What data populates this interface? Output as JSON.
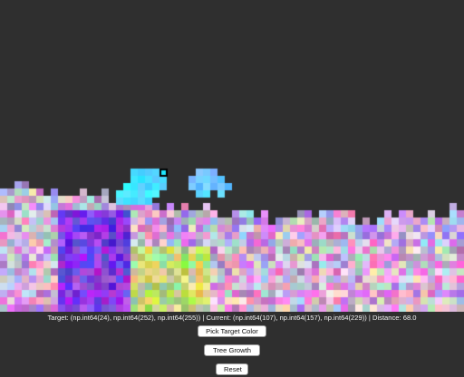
{
  "status": {
    "text": "Target: (np.int64(24), np.int64(252), np.int64(255)) | Current: (np.int64(107), np.int64(157), np.int64(229)) | Distance: 68.0"
  },
  "buttons": {
    "pick_target": "Pick Target Color",
    "tree_growth": "Tree Growth",
    "reset": "Reset"
  },
  "colors": {
    "background": "#2f2f2f",
    "target_rgb": [
      24,
      252,
      255
    ],
    "current_rgb": [
      107,
      157,
      229
    ],
    "cursor_outline": "#000000"
  }
}
